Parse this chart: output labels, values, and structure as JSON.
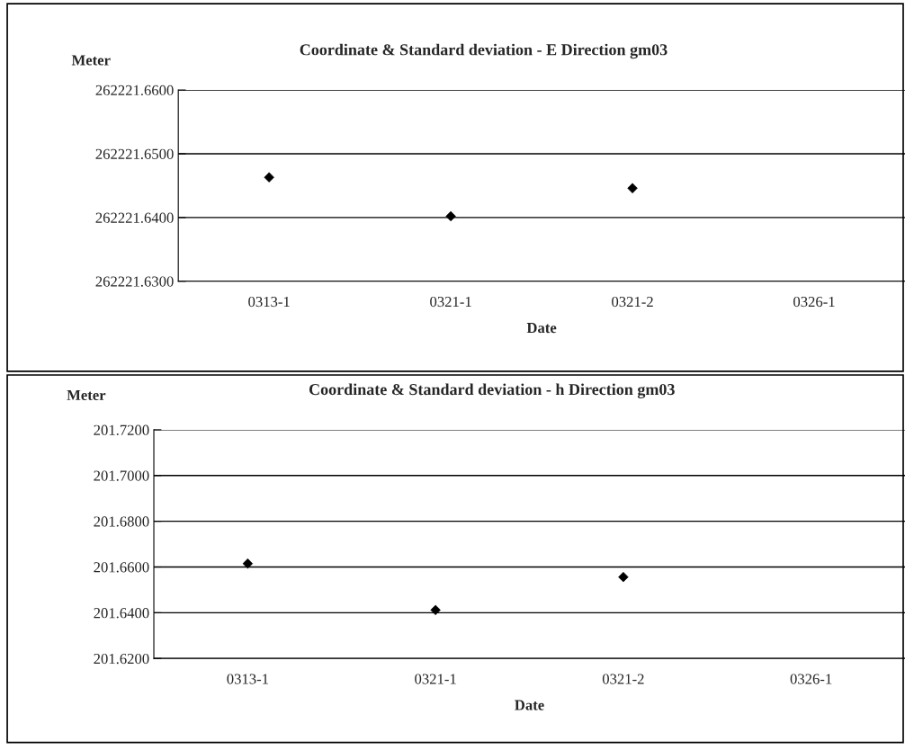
{
  "chart_data": [
    {
      "type": "scatter",
      "title": "Coordinate & Standard deviation - E Direction gm03",
      "ylabel": "Meter",
      "xlabel": "Date",
      "categories": [
        "0313-1",
        "0321-1",
        "0321-2",
        "0326-1"
      ],
      "series": [
        {
          "color": "#000000",
          "values": [
            262221.6463,
            262221.6402,
            262221.6446,
            null
          ]
        }
      ],
      "ylim": [
        262221.63,
        262221.66
      ],
      "yticks": [
        {
          "value": 262221.63,
          "label": "262221.6300"
        },
        {
          "value": 262221.64,
          "label": "262221.6400"
        },
        {
          "value": 262221.65,
          "label": "262221.6500"
        },
        {
          "value": 262221.66,
          "label": "262221.6600"
        }
      ],
      "grid": "y",
      "marker": "diamond"
    },
    {
      "type": "scatter",
      "title": "Coordinate & Standard deviation - h Direction gm03",
      "ylabel": "Meter",
      "xlabel": "Date",
      "categories": [
        "0313-1",
        "0321-1",
        "0321-2",
        "0326-1"
      ],
      "series": [
        {
          "color": "#000000",
          "values": [
            201.6615,
            201.6412,
            201.6556,
            null
          ]
        }
      ],
      "ylim": [
        201.62,
        201.72
      ],
      "yticks": [
        {
          "value": 201.62,
          "label": "201.6200"
        },
        {
          "value": 201.64,
          "label": "201.6400"
        },
        {
          "value": 201.66,
          "label": "201.6600"
        },
        {
          "value": 201.68,
          "label": "201.6800"
        },
        {
          "value": 201.7,
          "label": "201.7000"
        },
        {
          "value": 201.72,
          "label": "201.7200"
        }
      ],
      "grid": "y",
      "marker": "diamond"
    }
  ]
}
